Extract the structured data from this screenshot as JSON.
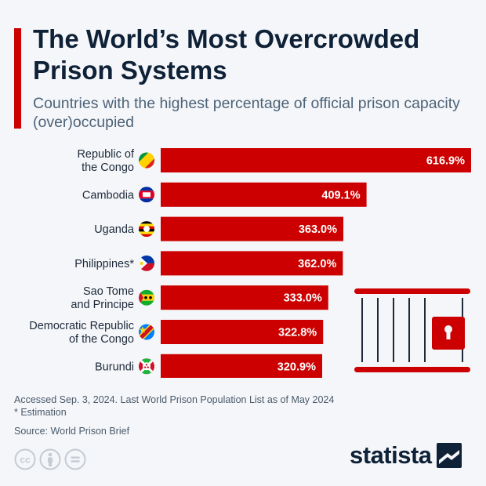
{
  "header": {
    "title": "The World’s Most Overcrowded Prison Systems",
    "subtitle": "Countries with the highest percentage of official prison capacity (over)occupied"
  },
  "chart_data": {
    "type": "bar",
    "orientation": "horizontal",
    "categories": [
      "Republic of the Congo",
      "Cambodia",
      "Uganda",
      "Philippines*",
      "Sao Tome and Principe",
      "Democratic Republic of the Congo",
      "Burundi"
    ],
    "category_lines": [
      [
        "Republic of",
        "the Congo"
      ],
      [
        "Cambodia"
      ],
      [
        "Uganda"
      ],
      [
        "Philippines*"
      ],
      [
        "Sao Tome",
        "and Principe"
      ],
      [
        "Democratic Republic",
        "of the Congo"
      ],
      [
        "Burundi"
      ]
    ],
    "values": [
      616.9,
      409.1,
      363.0,
      362.0,
      333.0,
      322.8,
      320.9
    ],
    "value_labels": [
      "616.9%",
      "409.1%",
      "363.0%",
      "362.0%",
      "333.0%",
      "322.8%",
      "320.9%"
    ],
    "flags": [
      "republic-of-the-congo-flag-icon",
      "cambodia-flag-icon",
      "uganda-flag-icon",
      "philippines-flag-icon",
      "sao-tome-and-principe-flag-icon",
      "dr-congo-flag-icon",
      "burundi-flag-icon"
    ],
    "xlim": [
      0,
      616.9
    ],
    "grid": false,
    "bar_color": "#cc0000",
    "illustration": "prison-cell-icon"
  },
  "footer": {
    "note": "Accessed Sep. 3, 2024. Last World Prison Population List as of May 2024",
    "estimation_note": "* Estimation",
    "source": "Source: World Prison Brief",
    "brand": "statista",
    "license_icons": [
      "creative-commons-icon",
      "attribution-icon",
      "no-derivatives-icon"
    ]
  },
  "colors": {
    "accent": "#cc0000",
    "title": "#0f2137",
    "subtitle": "#4d6378",
    "background": "#f4f6f9"
  }
}
